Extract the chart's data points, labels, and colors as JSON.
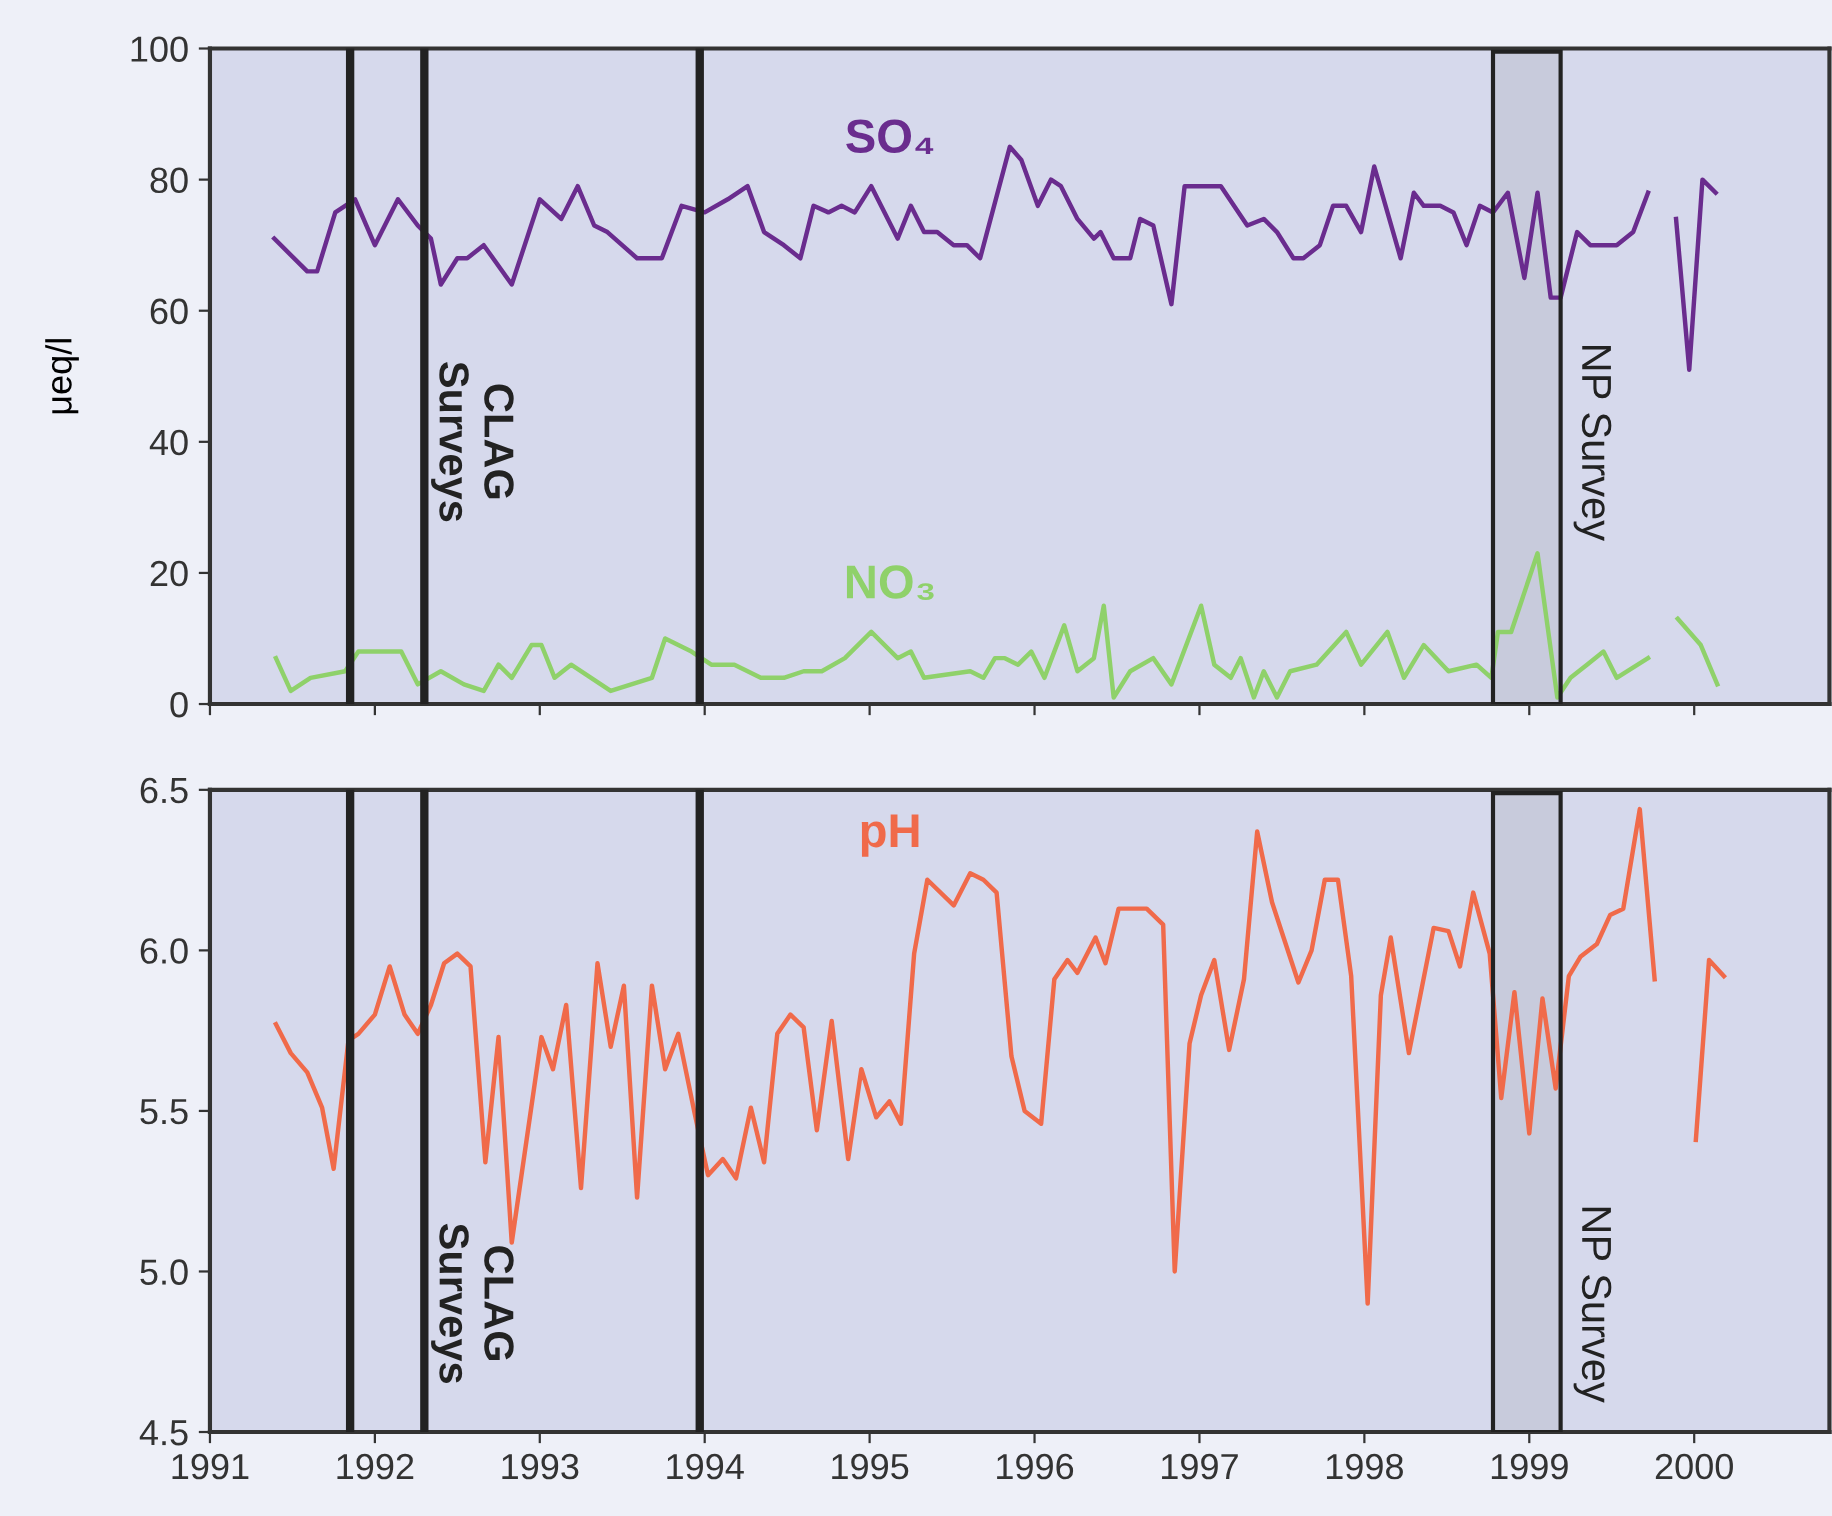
{
  "chart_data": [
    {
      "type": "line",
      "ylabel": "μeq/l",
      "xlim": [
        1991,
        2000.82
      ],
      "ylim": [
        0,
        100
      ],
      "xticks": [
        1991,
        1992,
        1993,
        1994,
        1995,
        1996,
        1997,
        1998,
        1999,
        2000
      ],
      "yticks": [
        0,
        20,
        40,
        60,
        80,
        100
      ],
      "tick_labels": "y",
      "grid": false,
      "legend": false,
      "marker": "none",
      "line_style": "solid",
      "series": [
        {
          "name": "SO₄",
          "color": "#6a2c8e",
          "x": [
            1991.39,
            1991.59,
            1991.65,
            1991.76,
            1991.88,
            1992.0,
            1992.14,
            1992.26,
            1992.34,
            1992.4,
            1992.5,
            1992.56,
            1992.66,
            1992.83,
            1993.0,
            1993.13,
            1993.23,
            1993.33,
            1993.41,
            1993.59,
            1993.74,
            1993.86,
            1994.0,
            1994.14,
            1994.26,
            1994.36,
            1994.48,
            1994.58,
            1994.66,
            1994.75,
            1994.83,
            1994.91,
            1995.01,
            1995.17,
            1995.25,
            1995.33,
            1995.41,
            1995.51,
            1995.59,
            1995.67,
            1995.85,
            1995.92,
            1996.02,
            1996.1,
            1996.16,
            1996.26,
            1996.36,
            1996.4,
            1996.48,
            1996.58,
            1996.64,
            1996.72,
            1996.83,
            1996.91,
            1997.13,
            1997.29,
            1997.39,
            1997.47,
            1997.57,
            1997.63,
            1997.73,
            1997.81,
            1997.89,
            1997.98,
            1998.06,
            1998.14,
            1998.22,
            1998.3,
            1998.36,
            1998.46,
            1998.54,
            1998.62,
            1998.7,
            1998.78,
            1998.87,
            1998.97,
            1999.05,
            1999.13,
            1999.19,
            1999.29,
            1999.37,
            1999.53,
            1999.63,
            1999.72,
            1999.8,
            1999.89,
            1999.97,
            2000.05,
            2000.13
          ],
          "values": [
            71,
            66,
            66,
            75,
            77,
            70,
            77,
            73,
            71,
            64,
            68,
            68,
            70,
            64,
            77,
            74,
            79,
            73,
            72,
            68,
            68,
            76,
            75,
            77,
            79,
            72,
            70,
            68,
            76,
            75,
            76,
            75,
            79,
            71,
            76,
            72,
            72,
            70,
            70,
            68,
            85,
            83,
            76,
            80,
            79,
            74,
            71,
            72,
            68,
            68,
            74,
            73,
            61,
            79,
            79,
            73,
            74,
            72,
            68,
            68,
            70,
            76,
            76,
            72,
            82,
            75,
            68,
            78,
            76,
            76,
            75,
            70,
            76,
            75,
            78,
            65,
            78,
            62,
            62,
            72,
            70,
            70,
            72,
            78,
            null,
            74,
            51,
            80,
            78
          ]
        },
        {
          "name": "NO₃",
          "color": "#8fd16a",
          "x": [
            1991.4,
            1991.49,
            1991.61,
            1991.82,
            1991.9,
            1992.02,
            1992.16,
            1992.26,
            1992.4,
            1992.54,
            1992.66,
            1992.75,
            1992.83,
            1992.95,
            1993.01,
            1993.09,
            1993.19,
            1993.43,
            1993.68,
            1993.76,
            1993.92,
            1994.04,
            1994.18,
            1994.34,
            1994.48,
            1994.6,
            1994.71,
            1994.85,
            1995.01,
            1995.17,
            1995.25,
            1995.33,
            1995.61,
            1995.69,
            1995.76,
            1995.82,
            1995.9,
            1995.98,
            1996.06,
            1996.18,
            1996.26,
            1996.36,
            1996.42,
            1996.48,
            1996.58,
            1996.72,
            1996.83,
            1997.01,
            1997.09,
            1997.19,
            1997.25,
            1997.33,
            1997.39,
            1997.47,
            1997.55,
            1997.71,
            1997.89,
            1997.98,
            1998.14,
            1998.24,
            1998.36,
            1998.51,
            1998.68,
            1998.77,
            1998.81,
            1998.89,
            1999.05,
            1999.17,
            1999.25,
            1999.35,
            1999.45,
            1999.53,
            1999.72,
            1999.8,
            1999.9,
            2000.04,
            2000.14
          ],
          "values": [
            7,
            2,
            4,
            5,
            8,
            8,
            8,
            3,
            5,
            3,
            2,
            6,
            4,
            9,
            9,
            4,
            6,
            2,
            4,
            10,
            8,
            6,
            6,
            4,
            4,
            5,
            5,
            7,
            11,
            7,
            8,
            4,
            5,
            4,
            7,
            7,
            6,
            8,
            4,
            12,
            5,
            7,
            15,
            1,
            5,
            7,
            3,
            15,
            6,
            4,
            7,
            1,
            5,
            1,
            5,
            6,
            11,
            6,
            11,
            4,
            9,
            5,
            6,
            4,
            11,
            11,
            23,
            1,
            4,
            6,
            8,
            4,
            7,
            null,
            13,
            9,
            3
          ]
        }
      ],
      "ref_lines": [
        {
          "axis": "x",
          "value": 1991.85,
          "color": "#222222"
        },
        {
          "axis": "x",
          "value": 1992.3,
          "color": "#222222",
          "label": "CLAG\nSurveys"
        },
        {
          "axis": "x",
          "value": 1993.97,
          "color": "#222222"
        }
      ],
      "bands": [
        {
          "axis": "x",
          "from": 1998.78,
          "to": 1999.19,
          "label": "NP Survey",
          "color": "#222222"
        }
      ]
    },
    {
      "type": "line",
      "xlim": [
        1991,
        2000.82
      ],
      "ylim": [
        4.5,
        6.5
      ],
      "xticks": [
        1991,
        1992,
        1993,
        1994,
        1995,
        1996,
        1997,
        1998,
        1999,
        2000
      ],
      "yticks": [
        4.5,
        {
          "value": 5,
          "label": "5.0"
        },
        5.5,
        {
          "value": 6,
          "label": "6.0"
        },
        6.5
      ],
      "grid": false,
      "legend": false,
      "marker": "none",
      "line_style": "solid",
      "series": [
        {
          "name": "pH",
          "color": "#f06a4a",
          "x": [
            1991.4,
            1991.49,
            1991.59,
            1991.68,
            1991.75,
            1991.84,
            1991.9,
            1992.0,
            1992.09,
            1992.18,
            1992.26,
            1992.34,
            1992.42,
            1992.5,
            1992.58,
            1992.67,
            1992.75,
            1992.83,
            1993.01,
            1993.08,
            1993.16,
            1993.25,
            1993.35,
            1993.43,
            1993.51,
            1993.59,
            1993.68,
            1993.76,
            1993.84,
            1993.94,
            1994.02,
            1994.11,
            1994.19,
            1994.28,
            1994.36,
            1994.44,
            1994.52,
            1994.6,
            1994.68,
            1994.77,
            1994.87,
            1994.95,
            1995.04,
            1995.12,
            1995.19,
            1995.27,
            1995.35,
            1995.51,
            1995.61,
            1995.69,
            1995.77,
            1995.86,
            1995.94,
            1996.04,
            1996.12,
            1996.2,
            1996.26,
            1996.37,
            1996.43,
            1996.51,
            1996.68,
            1996.78,
            1996.85,
            1996.94,
            1997.01,
            1997.09,
            1997.18,
            1997.27,
            1997.35,
            1997.44,
            1997.51,
            1997.6,
            1997.68,
            1997.76,
            1997.84,
            1997.92,
            1998.02,
            1998.1,
            1998.16,
            1998.27,
            1998.42,
            1998.51,
            1998.58,
            1998.66,
            1998.76,
            1998.83,
            1998.91,
            1999.0,
            1999.08,
            1999.16,
            1999.24,
            1999.31,
            1999.41,
            1999.49,
            1999.57,
            1999.67,
            1999.76,
            1999.88,
            2000.01,
            2000.09,
            2000.18
          ],
          "values": [
            5.77,
            5.68,
            5.62,
            5.51,
            5.32,
            5.72,
            5.74,
            5.8,
            5.95,
            5.8,
            5.74,
            5.83,
            5.96,
            5.99,
            5.95,
            5.34,
            5.73,
            5.09,
            5.73,
            5.63,
            5.83,
            5.26,
            5.96,
            5.7,
            5.89,
            5.23,
            5.89,
            5.63,
            5.74,
            5.49,
            5.3,
            5.35,
            5.29,
            5.51,
            5.34,
            5.74,
            5.8,
            5.76,
            5.44,
            5.78,
            5.35,
            5.63,
            5.48,
            5.53,
            5.46,
            5.99,
            6.22,
            6.14,
            6.24,
            6.22,
            6.18,
            5.67,
            5.5,
            5.46,
            5.91,
            5.97,
            5.93,
            6.04,
            5.96,
            6.13,
            6.13,
            6.08,
            5.0,
            5.71,
            5.86,
            5.97,
            5.69,
            5.91,
            6.37,
            6.15,
            6.04,
            5.9,
            6.0,
            6.22,
            6.22,
            5.92,
            4.9,
            5.86,
            6.04,
            5.68,
            6.07,
            6.06,
            5.95,
            6.18,
            5.99,
            5.54,
            5.87,
            5.43,
            5.85,
            5.57,
            5.92,
            5.98,
            6.02,
            6.11,
            6.13,
            6.44,
            5.91,
            null,
            5.41,
            5.97,
            5.92
          ]
        }
      ],
      "ref_lines": [
        {
          "axis": "x",
          "value": 1991.85,
          "color": "#222222"
        },
        {
          "axis": "x",
          "value": 1992.3,
          "color": "#222222",
          "label": "CLAG\nSurveys"
        },
        {
          "axis": "x",
          "value": 1993.97,
          "color": "#222222"
        }
      ],
      "bands": [
        {
          "axis": "x",
          "from": 1998.78,
          "to": 1999.19,
          "label": "NP Survey",
          "color": "#222222"
        }
      ]
    }
  ]
}
